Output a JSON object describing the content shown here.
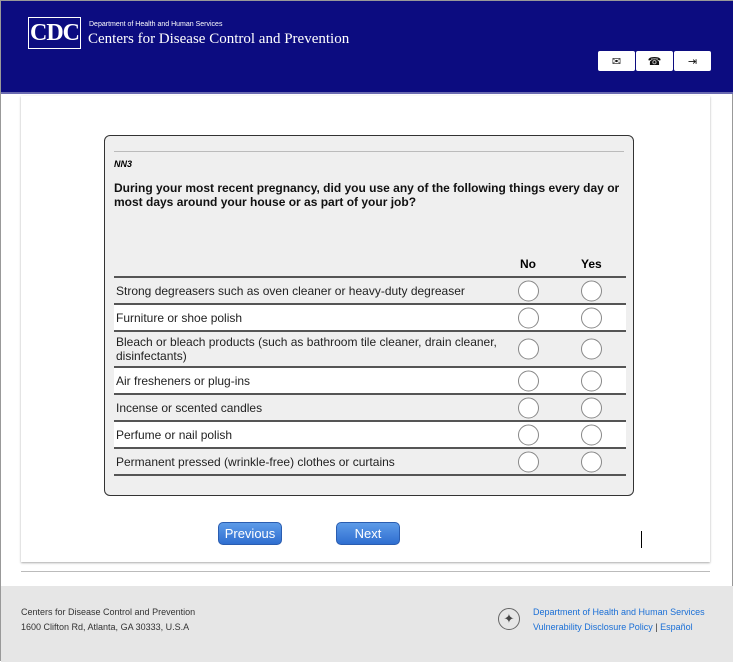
{
  "header": {
    "logo": "CDC",
    "dept": "Department of Health and Human Services",
    "title": "Centers for Disease Control and Prevention",
    "icons": [
      "mail-icon",
      "phone-icon",
      "sign-out-icon"
    ]
  },
  "question": {
    "id": "NN3",
    "text": "During your most recent pregnancy, did you use any of the following things every day or most days around your house or as part of your job?",
    "columns": [
      "No",
      "Yes"
    ],
    "rows": [
      {
        "label": "Strong degreasers such as oven cleaner or heavy-duty degreaser"
      },
      {
        "label": "Furniture or shoe polish"
      },
      {
        "label": "Bleach or bleach products (such as bathroom tile cleaner, drain cleaner, disinfectants)"
      },
      {
        "label": "Air fresheners or plug-ins"
      },
      {
        "label": "Incense or scented candles"
      },
      {
        "label": "Perfume or nail polish"
      },
      {
        "label": "Permanent pressed (wrinkle-free) clothes or curtains"
      }
    ]
  },
  "nav": {
    "previous": "Previous",
    "next": "Next"
  },
  "footer": {
    "org": "Centers for Disease Control and Prevention",
    "address": "1600 Clifton Rd, Atlanta, GA 30333, U.S.A",
    "hhs_link": "Department of Health and Human Services",
    "vdp_link": "Vulnerability Disclosure Policy",
    "separator": "|",
    "espanol_link": "Español"
  }
}
